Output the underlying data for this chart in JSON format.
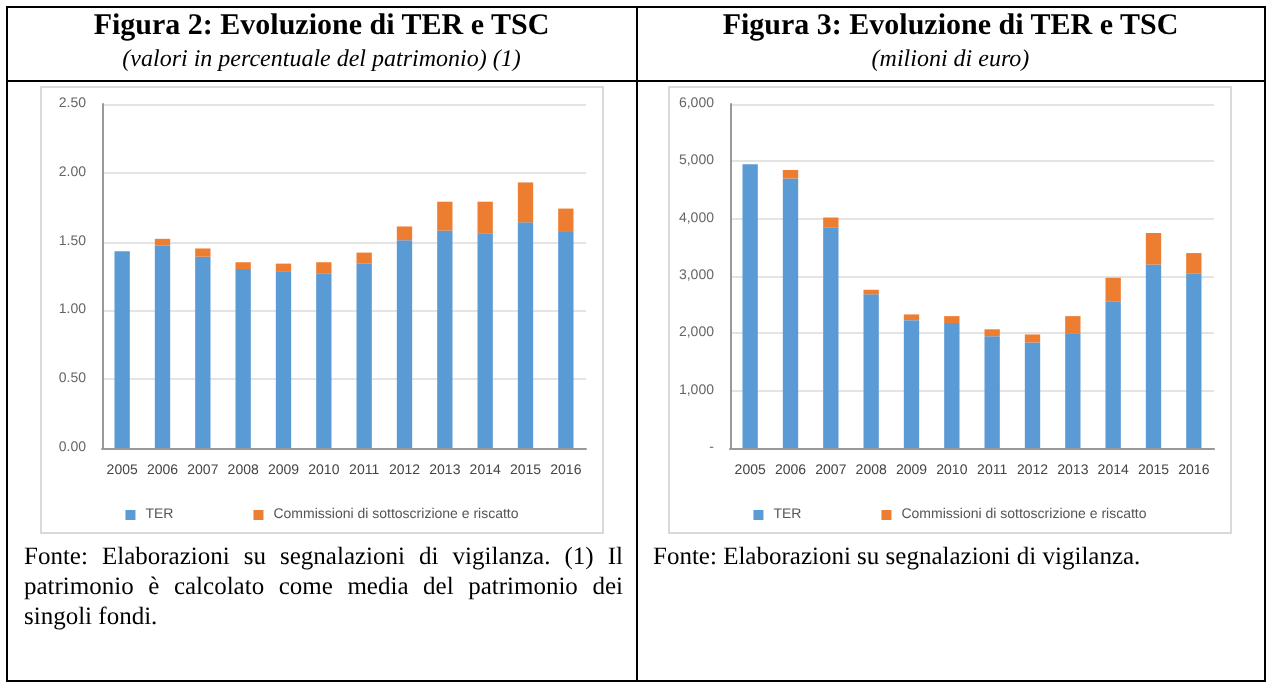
{
  "chart_data": [
    {
      "type": "bar",
      "stacked": true,
      "title": "Figura 2: Evoluzione di TER e TSC",
      "subtitle": "(valori in percentuale del  patrimonio) (1)",
      "categories": [
        "2005",
        "2006",
        "2007",
        "2008",
        "2009",
        "2010",
        "2011",
        "2012",
        "2013",
        "2014",
        "2015",
        "2016"
      ],
      "series": [
        {
          "name": "TER",
          "color": "#5b9bd5",
          "values": [
            1.43,
            1.47,
            1.39,
            1.3,
            1.28,
            1.27,
            1.34,
            1.51,
            1.58,
            1.56,
            1.64,
            1.57
          ]
        },
        {
          "name": "Commissioni di sottoscrizione e riscatto",
          "color": "#ed7d31",
          "values": [
            0,
            0.05,
            0.06,
            0.05,
            0.06,
            0.08,
            0.08,
            0.1,
            0.21,
            0.23,
            0.29,
            0.17
          ]
        }
      ],
      "ylim": [
        0,
        2.5
      ],
      "yticks": [
        {
          "value": 0,
          "label": "0.00"
        },
        {
          "value": 0.5,
          "label": "0.50"
        },
        {
          "value": 1,
          "label": "1.00"
        },
        {
          "value": 1.5,
          "label": "1.50"
        },
        {
          "value": 2,
          "label": "2.00"
        },
        {
          "value": 2.5,
          "label": "2.50"
        }
      ],
      "grid": "y",
      "legend": "bottom",
      "annotations": [
        "Fonte: Elaborazioni su segnalazioni di vigilanza. (1) Il patrimonio è calcolato come media del patrimonio dei singoli fondi."
      ]
    },
    {
      "type": "bar",
      "stacked": true,
      "title": "Figura 3: Evoluzione di TER e TSC",
      "subtitle": "(milioni di euro)",
      "categories": [
        "2005",
        "2006",
        "2007",
        "2008",
        "2009",
        "2010",
        "2011",
        "2012",
        "2013",
        "2014",
        "2015",
        "2016"
      ],
      "series": [
        {
          "name": "TER",
          "color": "#5b9bd5",
          "values": [
            4950,
            4700,
            3850,
            2680,
            2230,
            2180,
            1950,
            1840,
            1990,
            2550,
            3200,
            3050
          ]
        },
        {
          "name": "Commissioni di sottoscrizione e riscatto",
          "color": "#ed7d31",
          "values": [
            0,
            150,
            170,
            80,
            100,
            120,
            120,
            140,
            310,
            420,
            550,
            350
          ]
        }
      ],
      "ylim": [
        0,
        6000
      ],
      "yticks": [
        {
          "value": 0,
          "label": "-"
        },
        {
          "value": 1000,
          "label": "1,000"
        },
        {
          "value": 2000,
          "label": "2,000"
        },
        {
          "value": 3000,
          "label": "3,000"
        },
        {
          "value": 4000,
          "label": "4,000"
        },
        {
          "value": 5000,
          "label": "5,000"
        },
        {
          "value": 6000,
          "label": "6,000"
        }
      ],
      "grid": "y",
      "legend": "bottom",
      "annotations": [
        "Fonte: Elaborazioni su segnalazioni di vigilanza."
      ]
    }
  ]
}
